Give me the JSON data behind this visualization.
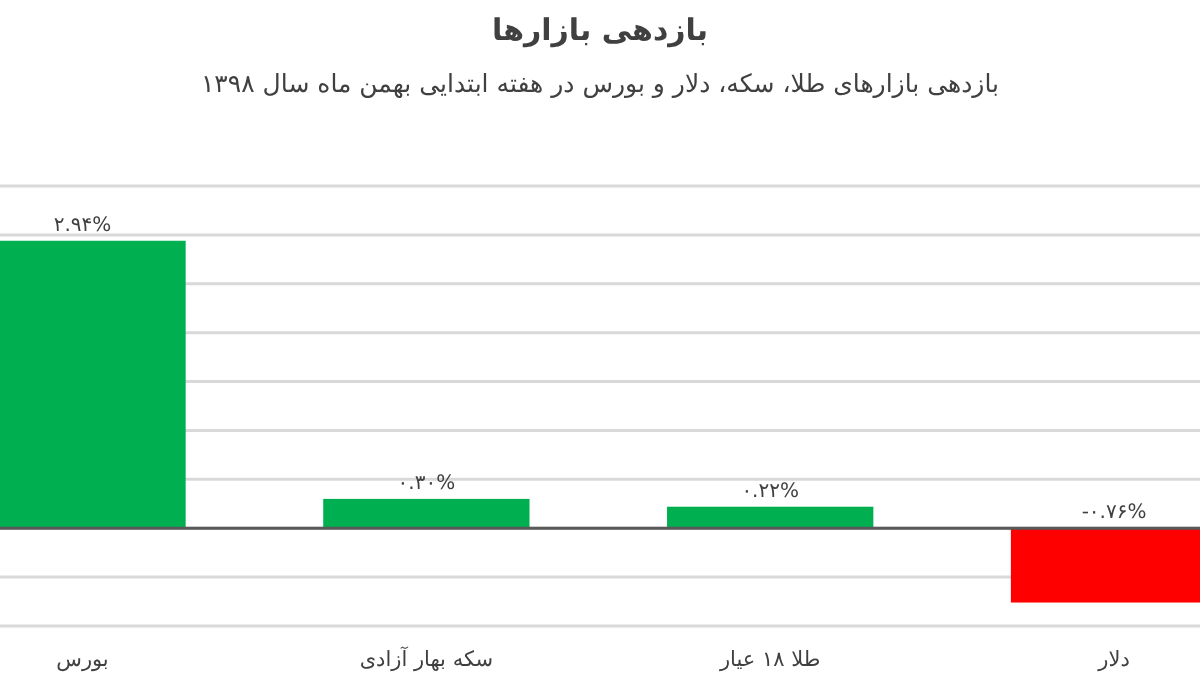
{
  "chart_data": {
    "type": "bar",
    "title": "بازدهی بازارها",
    "subtitle": "بازدهی بازارهای طلا، سکه، دلار و بورس در هفته ابتدایی بهمن ماه سال ۱۳۹۸",
    "categories": [
      "بورس",
      "سکه بهار آزادی",
      "طلا ۱۸ عیار",
      "دلار"
    ],
    "values": [
      2.94,
      0.3,
      0.22,
      -0.76
    ],
    "colors": [
      "#00b050",
      "#00b050",
      "#00b050",
      "#ff0000"
    ],
    "value_labels": [
      "۲.۹۴%",
      "۰.۳۰%",
      "۰.۲۲%",
      "-۰.۷۶%"
    ],
    "ylim": [
      -1,
      3.5
    ],
    "yticks": [
      {
        "value": -1,
        "label": null
      },
      {
        "value": -0.5,
        "label": null
      },
      {
        "value": 0,
        "label": null
      },
      {
        "value": 0.5,
        "label": null
      },
      {
        "value": 1,
        "label": null
      },
      {
        "value": 1.5,
        "label": null
      },
      {
        "value": 2,
        "label": null
      },
      {
        "value": 2.5,
        "label": null
      },
      {
        "value": 3,
        "label": null
      },
      {
        "value": 3.5,
        "label": null
      }
    ],
    "grid": "y",
    "tick_labels": "x"
  }
}
